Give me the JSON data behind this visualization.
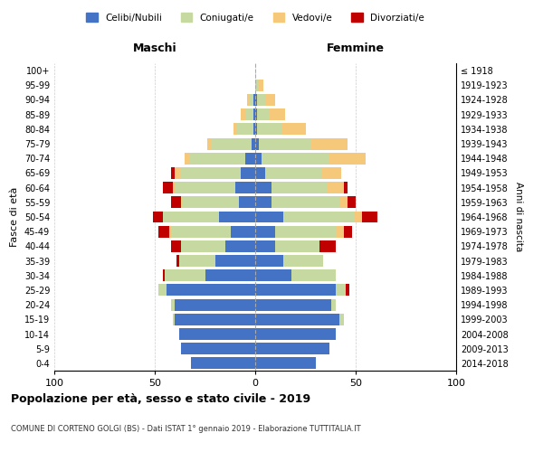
{
  "age_groups": [
    "0-4",
    "5-9",
    "10-14",
    "15-19",
    "20-24",
    "25-29",
    "30-34",
    "35-39",
    "40-44",
    "45-49",
    "50-54",
    "55-59",
    "60-64",
    "65-69",
    "70-74",
    "75-79",
    "80-84",
    "85-89",
    "90-94",
    "95-99",
    "100+"
  ],
  "birth_years": [
    "2014-2018",
    "2009-2013",
    "2004-2008",
    "1999-2003",
    "1994-1998",
    "1989-1993",
    "1984-1988",
    "1979-1983",
    "1974-1978",
    "1969-1973",
    "1964-1968",
    "1959-1963",
    "1954-1958",
    "1949-1953",
    "1944-1948",
    "1939-1943",
    "1934-1938",
    "1929-1933",
    "1924-1928",
    "1919-1923",
    "≤ 1918"
  ],
  "colors": {
    "celibe": "#4472C4",
    "coniugato": "#C5D9A0",
    "vedovo": "#F5C87A",
    "divorziato": "#C00000"
  },
  "maschi": {
    "celibe": [
      32,
      37,
      38,
      40,
      40,
      44,
      25,
      20,
      15,
      12,
      18,
      8,
      10,
      7,
      5,
      2,
      1,
      1,
      1,
      0,
      0
    ],
    "coniugato": [
      0,
      0,
      0,
      1,
      2,
      4,
      20,
      18,
      22,
      30,
      28,
      28,
      30,
      30,
      28,
      20,
      8,
      4,
      2,
      0,
      0
    ],
    "vedovo": [
      0,
      0,
      0,
      0,
      0,
      0,
      0,
      0,
      0,
      1,
      0,
      1,
      1,
      3,
      2,
      2,
      2,
      2,
      1,
      0,
      0
    ],
    "divorziato": [
      0,
      0,
      0,
      0,
      0,
      0,
      1,
      1,
      5,
      5,
      5,
      5,
      5,
      2,
      0,
      0,
      0,
      0,
      0,
      0,
      0
    ]
  },
  "femmine": {
    "nubile": [
      30,
      37,
      40,
      42,
      38,
      40,
      18,
      14,
      10,
      10,
      14,
      8,
      8,
      5,
      3,
      2,
      1,
      1,
      1,
      0,
      0
    ],
    "coniugata": [
      0,
      0,
      0,
      2,
      2,
      5,
      22,
      20,
      22,
      30,
      35,
      34,
      28,
      28,
      34,
      26,
      12,
      6,
      4,
      2,
      0
    ],
    "vedova": [
      0,
      0,
      0,
      0,
      0,
      0,
      0,
      0,
      0,
      4,
      4,
      4,
      8,
      10,
      18,
      18,
      12,
      8,
      5,
      2,
      0
    ],
    "divorziata": [
      0,
      0,
      0,
      0,
      0,
      2,
      0,
      0,
      8,
      4,
      8,
      4,
      2,
      0,
      0,
      0,
      0,
      0,
      0,
      0,
      0
    ]
  },
  "xlim": 100,
  "title": "Popolazione per età, sesso e stato civile - 2019",
  "subtitle": "COMUNE DI CORTENO GOLGI (BS) - Dati ISTAT 1° gennaio 2019 - Elaborazione TUTTITALIA.IT",
  "ylabel": "Fasce di età",
  "ylabel_right": "Anni di nascita",
  "legend_labels": [
    "Celibi/Nubili",
    "Coniugati/e",
    "Vedovi/e",
    "Divorziati/e"
  ],
  "maschi_label": "Maschi",
  "femmine_label": "Femmine",
  "xticks": [
    -100,
    -50,
    0,
    50,
    100
  ]
}
